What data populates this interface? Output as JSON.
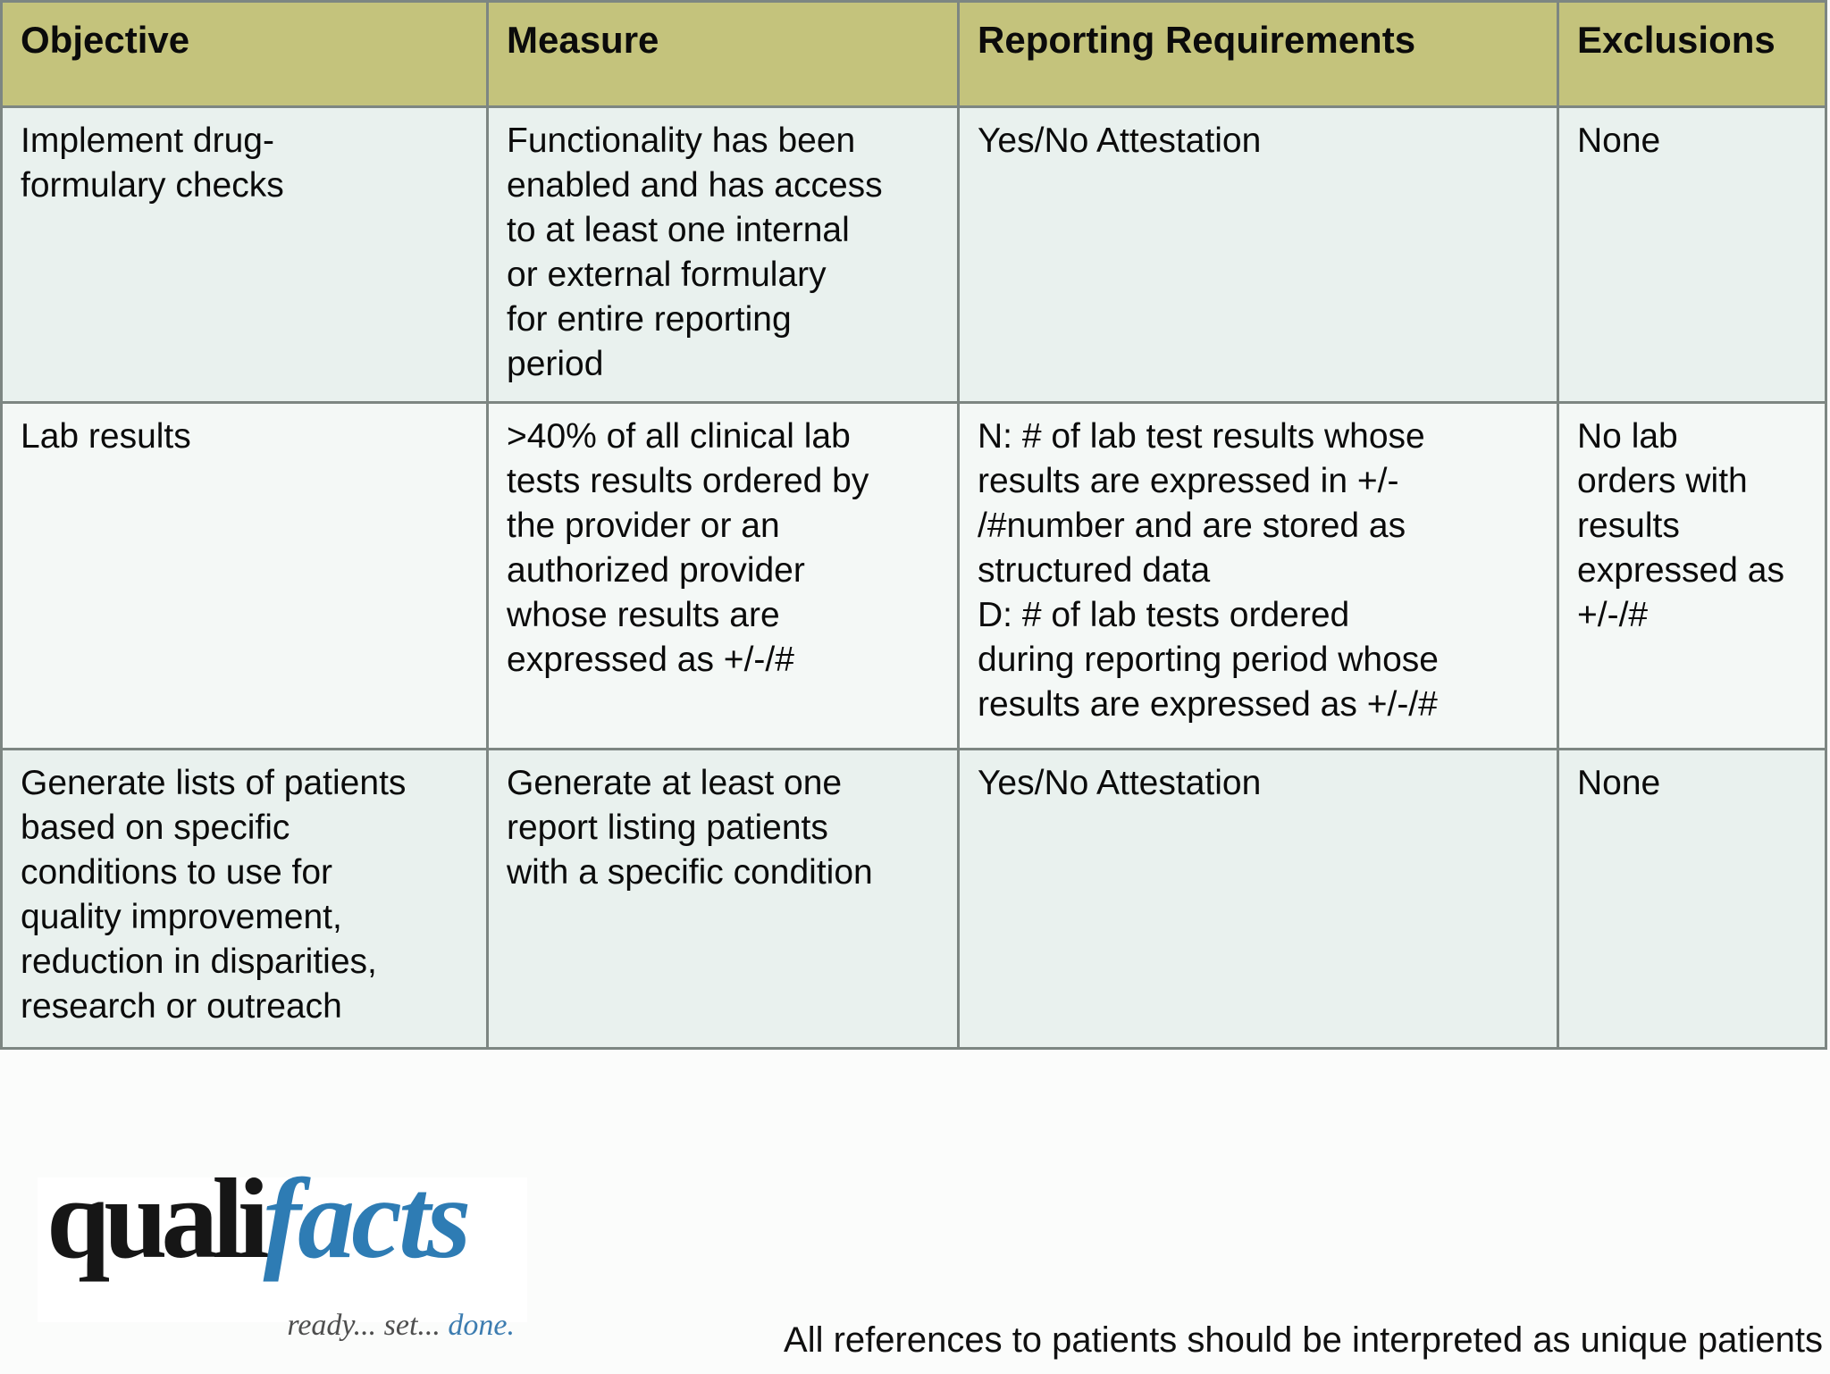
{
  "table": {
    "headers": [
      "Objective",
      "Measure",
      "Reporting Requirements",
      "Exclusions"
    ],
    "rows": [
      {
        "objective": "Implement drug-\nformulary checks",
        "measure": "Functionality has been\nenabled and has access\nto at least one internal\nor external formulary\nfor entire reporting\nperiod",
        "reporting": "Yes/No Attestation",
        "exclusions": "None"
      },
      {
        "objective": "Lab results",
        "measure": ">40% of all clinical lab\ntests results ordered by\nthe provider or an\nauthorized provider\nwhose results are\nexpressed as +/-/#",
        "reporting": "N: # of lab test results whose\nresults are expressed in +/-\n/#number and are stored as\nstructured data\nD: # of lab tests ordered\nduring reporting period whose\nresults are expressed as +/-/#",
        "exclusions": "No lab\norders with\nresults\nexpressed as\n+/-/#"
      },
      {
        "objective": "Generate lists of patients\nbased on specific\nconditions to use for\nquality improvement,\nreduction in disparities,\nresearch or outreach",
        "measure": "Generate at least one\nreport listing patients\nwith a specific condition",
        "reporting": "Yes/No Attestation",
        "exclusions": "None"
      }
    ],
    "colors": {
      "header_bg": "#c4c37c",
      "row_bg": "#e9f1ee",
      "row_alt_bg": "#f4f8f6",
      "border": "#7d8682",
      "text": "#0b0b0b"
    }
  },
  "logo": {
    "word_black": "quali",
    "word_blue": "facts",
    "tagline_gray": "ready... set... ",
    "tagline_blue": "done.",
    "colors": {
      "word_black": "#161616",
      "word_blue": "#2e7cb4",
      "tagline_gray": "#4e4e4e",
      "tagline_blue": "#3c7cb0"
    }
  },
  "footer": {
    "note": "All references to patients should be interpreted as unique patients"
  }
}
